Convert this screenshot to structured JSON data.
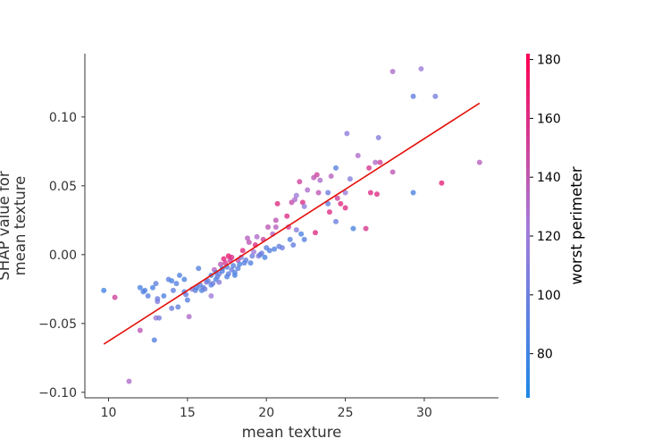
{
  "chart_data": {
    "type": "scatter",
    "xlabel": "mean texture",
    "ylabel_lines": [
      "SHAP value for",
      "mean texture"
    ],
    "xlim": [
      8.5,
      34.7
    ],
    "ylim": [
      -0.104,
      0.146
    ],
    "xticks": [
      10,
      15,
      20,
      25,
      30
    ],
    "yticks": [
      -0.1,
      -0.05,
      0.0,
      0.05,
      0.1
    ],
    "ytick_labels": [
      "−0.10",
      "−0.05",
      "0.00",
      "0.05",
      "0.10"
    ],
    "colorbar": {
      "title": "worst perimeter",
      "range": [
        65,
        182
      ],
      "ticks": [
        80,
        100,
        120,
        140,
        160,
        180
      ],
      "colors": [
        "#1e88e5",
        "#a57bd9",
        "#ff0052"
      ]
    },
    "trend_line": {
      "x": [
        9.7,
        33.5
      ],
      "y": [
        -0.065,
        0.11
      ],
      "color": "#e3120b"
    },
    "points": [
      [
        9.7,
        -0.026,
        82
      ],
      [
        10.4,
        -0.031,
        150
      ],
      [
        11.3,
        -0.092,
        130
      ],
      [
        12.0,
        -0.024,
        85
      ],
      [
        12.2,
        -0.027,
        90
      ],
      [
        12.3,
        -0.026,
        88
      ],
      [
        12.5,
        -0.03,
        92
      ],
      [
        12.0,
        -0.055,
        140
      ],
      [
        12.8,
        -0.024,
        85
      ],
      [
        13.0,
        -0.021,
        95
      ],
      [
        12.9,
        -0.062,
        90
      ],
      [
        13.0,
        -0.046,
        120
      ],
      [
        13.1,
        -0.034,
        110
      ],
      [
        13.1,
        -0.032,
        100
      ],
      [
        13.2,
        -0.046,
        105
      ],
      [
        13.5,
        -0.03,
        88
      ],
      [
        13.8,
        -0.018,
        92
      ],
      [
        14.0,
        -0.019,
        85
      ],
      [
        14.1,
        -0.026,
        95
      ],
      [
        14.0,
        -0.039,
        100
      ],
      [
        14.3,
        -0.021,
        90
      ],
      [
        14.4,
        -0.038,
        95
      ],
      [
        14.5,
        -0.015,
        88
      ],
      [
        14.8,
        -0.027,
        92
      ],
      [
        14.8,
        -0.018,
        85
      ],
      [
        14.9,
        -0.029,
        100
      ],
      [
        15.0,
        -0.033,
        90
      ],
      [
        15.1,
        -0.045,
        130
      ],
      [
        15.3,
        -0.025,
        110
      ],
      [
        15.5,
        -0.026,
        95
      ],
      [
        15.6,
        -0.024,
        85
      ],
      [
        15.7,
        -0.01,
        90
      ],
      [
        15.8,
        -0.022,
        95
      ],
      [
        15.9,
        -0.026,
        88
      ],
      [
        16.0,
        -0.024,
        92
      ],
      [
        16.1,
        -0.025,
        100
      ],
      [
        16.2,
        -0.02,
        110
      ],
      [
        16.3,
        -0.019,
        95
      ],
      [
        16.5,
        -0.015,
        85
      ],
      [
        16.5,
        -0.022,
        90
      ],
      [
        16.5,
        -0.03,
        120
      ],
      [
        16.6,
        -0.021,
        100
      ],
      [
        16.7,
        -0.011,
        135
      ],
      [
        16.8,
        -0.013,
        90
      ],
      [
        16.8,
        -0.018,
        85
      ],
      [
        16.9,
        -0.016,
        95
      ],
      [
        17.0,
        -0.014,
        100
      ],
      [
        17.0,
        -0.02,
        110
      ],
      [
        17.1,
        -0.007,
        140
      ],
      [
        17.2,
        -0.01,
        85
      ],
      [
        17.2,
        -0.012,
        90
      ],
      [
        17.3,
        -0.003,
        165
      ],
      [
        17.4,
        -0.006,
        155
      ],
      [
        17.5,
        -0.009,
        92
      ],
      [
        17.5,
        -0.016,
        88
      ],
      [
        17.6,
        -0.014,
        95
      ],
      [
        17.6,
        -0.001,
        170
      ],
      [
        17.7,
        -0.004,
        150
      ],
      [
        17.8,
        -0.011,
        100
      ],
      [
        17.8,
        -0.002,
        160
      ],
      [
        17.9,
        -0.008,
        90
      ],
      [
        18.0,
        -0.015,
        85
      ],
      [
        18.0,
        -0.013,
        88
      ],
      [
        18.2,
        -0.01,
        92
      ],
      [
        18.2,
        -0.004,
        145
      ],
      [
        18.3,
        -0.007,
        85
      ],
      [
        18.4,
        -0.002,
        110
      ],
      [
        18.5,
        0.003,
        160
      ],
      [
        18.6,
        -0.006,
        90
      ],
      [
        18.7,
        -0.004,
        95
      ],
      [
        18.8,
        0.012,
        135
      ],
      [
        18.9,
        0.009,
        140
      ],
      [
        19.0,
        -0.006,
        88
      ],
      [
        19.1,
        -0.001,
        100
      ],
      [
        19.2,
        0.002,
        120
      ],
      [
        19.3,
        0.007,
        160
      ],
      [
        19.4,
        0.013,
        130
      ],
      [
        19.5,
        -0.001,
        110
      ],
      [
        19.6,
        0.0,
        95
      ],
      [
        19.7,
        0.001,
        100
      ],
      [
        19.8,
        0.011,
        150
      ],
      [
        19.9,
        -0.002,
        85
      ],
      [
        20.0,
        0.005,
        92
      ],
      [
        20.1,
        0.02,
        140
      ],
      [
        20.2,
        0.003,
        90
      ],
      [
        20.4,
        0.015,
        130
      ],
      [
        20.5,
        0.004,
        88
      ],
      [
        20.6,
        0.025,
        140
      ],
      [
        20.6,
        0.02,
        135
      ],
      [
        20.7,
        0.037,
        160
      ],
      [
        20.8,
        0.006,
        95
      ],
      [
        21.0,
        0.005,
        100
      ],
      [
        21.3,
        0.028,
        160
      ],
      [
        21.4,
        0.02,
        150
      ],
      [
        21.5,
        0.011,
        90
      ],
      [
        21.6,
        0.038,
        145
      ],
      [
        21.7,
        0.007,
        95
      ],
      [
        21.8,
        0.04,
        130
      ],
      [
        21.9,
        0.043,
        120
      ],
      [
        21.9,
        0.018,
        110
      ],
      [
        22.1,
        0.053,
        150
      ],
      [
        22.2,
        0.015,
        85
      ],
      [
        22.3,
        0.038,
        160
      ],
      [
        22.4,
        0.011,
        90
      ],
      [
        22.4,
        0.035,
        115
      ],
      [
        22.6,
        0.047,
        130
      ],
      [
        23.0,
        0.056,
        140
      ],
      [
        23.1,
        0.016,
        160
      ],
      [
        23.2,
        0.058,
        150
      ],
      [
        23.3,
        0.045,
        140
      ],
      [
        23.4,
        0.054,
        130
      ],
      [
        23.9,
        0.045,
        100
      ],
      [
        23.9,
        0.037,
        95
      ],
      [
        24.0,
        0.031,
        160
      ],
      [
        24.1,
        0.057,
        135
      ],
      [
        24.4,
        0.063,
        90
      ],
      [
        24.4,
        0.024,
        100
      ],
      [
        24.5,
        0.041,
        150
      ],
      [
        24.7,
        0.037,
        160
      ],
      [
        25.0,
        0.045,
        120
      ],
      [
        25.0,
        0.034,
        160
      ],
      [
        25.1,
        0.088,
        115
      ],
      [
        25.3,
        0.055,
        110
      ],
      [
        25.5,
        0.019,
        85
      ],
      [
        25.8,
        0.072,
        130
      ],
      [
        26.3,
        0.019,
        155
      ],
      [
        26.5,
        0.063,
        155
      ],
      [
        26.6,
        0.045,
        160
      ],
      [
        26.9,
        0.067,
        130
      ],
      [
        27.0,
        0.044,
        160
      ],
      [
        27.1,
        0.085,
        110
      ],
      [
        27.2,
        0.067,
        150
      ],
      [
        28.0,
        0.06,
        140
      ],
      [
        28.0,
        0.133,
        130
      ],
      [
        29.3,
        0.115,
        95
      ],
      [
        29.3,
        0.045,
        85
      ],
      [
        29.8,
        0.135,
        120
      ],
      [
        30.7,
        0.115,
        105
      ],
      [
        31.1,
        0.052,
        165
      ],
      [
        33.5,
        0.067,
        135
      ]
    ]
  }
}
